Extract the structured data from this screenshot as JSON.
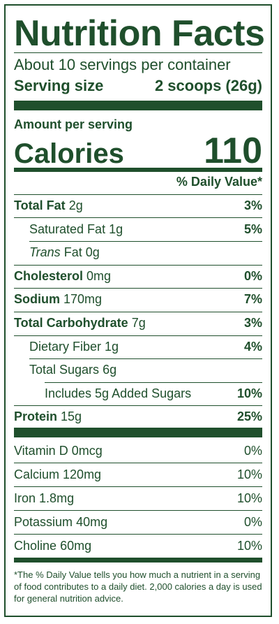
{
  "title": "Nutrition Facts",
  "servings_per_container": "About 10 servings per container",
  "serving_size_label": "Serving size",
  "serving_size_value": "2 scoops (26g)",
  "amount_per_serving": "Amount per serving",
  "calories_label": "Calories",
  "calories_value": "110",
  "daily_value_header": "% Daily Value*",
  "nutrients": [
    {
      "name": "Total Fat",
      "amount": "2g",
      "dv": "3%"
    },
    {
      "name": "Saturated Fat",
      "amount": "1g",
      "dv": "5%"
    },
    {
      "name": "Trans",
      "name_suffix": "Fat",
      "amount": "0g",
      "dv": ""
    },
    {
      "name": "Cholesterol",
      "amount": "0mg",
      "dv": "0%"
    },
    {
      "name": "Sodium",
      "amount": "170mg",
      "dv": "7%"
    },
    {
      "name": "Total Carbohydrate",
      "amount": "7g",
      "dv": "3%"
    },
    {
      "name": "Dietary Fiber",
      "amount": "1g",
      "dv": "4%"
    },
    {
      "name": "Total Sugars",
      "amount": "6g",
      "dv": ""
    },
    {
      "name": "Includes 5g Added Sugars",
      "amount": "",
      "dv": "10%"
    },
    {
      "name": "Protein",
      "amount": "15g",
      "dv": "25%"
    }
  ],
  "vitamins": [
    {
      "name": "Vitamin D",
      "amount": "0mcg",
      "dv": "0%"
    },
    {
      "name": "Calcium",
      "amount": "120mg",
      "dv": "10%"
    },
    {
      "name": "Iron",
      "amount": "1.8mg",
      "dv": "10%"
    },
    {
      "name": "Potassium",
      "amount": "40mg",
      "dv": "0%"
    },
    {
      "name": "Choline",
      "amount": "60mg",
      "dv": "10%"
    }
  ],
  "footnote": "*The % Daily Value tells you how much a nutrient in a serving of food contributes to a daily diet. 2,000 calories a day is used for general nutrition advice.",
  "colors": {
    "ink": "#1f4f2c",
    "background": "#ffffff"
  }
}
